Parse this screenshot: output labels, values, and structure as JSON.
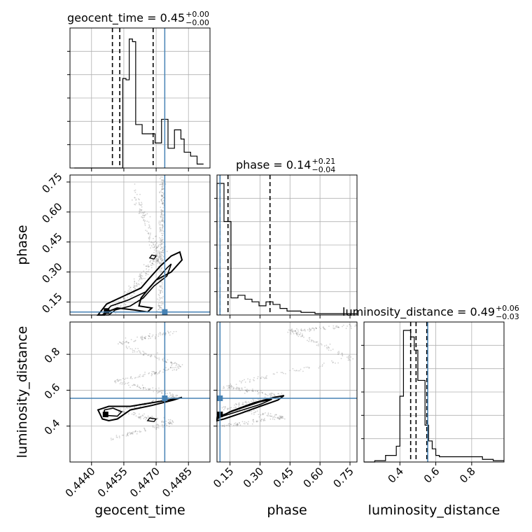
{
  "chart_data": {
    "type": "corner",
    "parameters": [
      "geocent_time",
      "phase",
      "luminosity_distance"
    ],
    "truths": {
      "geocent_time": 0.4474,
      "phase": 0.1,
      "luminosity_distance": 0.555
    },
    "colors": {
      "truth": "#4682b4",
      "hist": "#000000",
      "grid": "#b0b0b0",
      "scatter": "#808080"
    },
    "grid": true,
    "axes": {
      "geocent_time": {
        "range": [
          0.443,
          0.4495
        ],
        "ticks": [
          0.444,
          0.4455,
          0.447,
          0.4485
        ],
        "tick_labels": [
          "0.4440",
          "0.4455",
          "0.4470",
          "0.4485"
        ]
      },
      "phase": {
        "range": [
          0.085,
          0.785
        ],
        "ticks": [
          0.15,
          0.3,
          0.45,
          0.6,
          0.75
        ],
        "tick_labels": [
          "0.15",
          "0.30",
          "0.45",
          "0.60",
          "0.75"
        ]
      },
      "luminosity_distance": {
        "range": [
          0.2,
          0.98
        ],
        "ticks": [
          0.4,
          0.6,
          0.8
        ],
        "tick_labels": [
          "0.4",
          "0.6",
          "0.8"
        ]
      }
    },
    "titles": [
      {
        "param": "geocent_time",
        "label": "geocent_time = ",
        "value": "0.45",
        "plus": "+0.00",
        "minus": "−0.00"
      },
      {
        "param": "phase",
        "label": "phase = ",
        "value": "0.14",
        "plus": "+0.21",
        "minus": "−0.04"
      },
      {
        "param": "luminosity_distance",
        "label": "luminosity_distance = ",
        "value": "0.49",
        "plus": "+0.06",
        "minus": "−0.03"
      }
    ],
    "histograms": {
      "geocent_time": {
        "edges": [
          0.4432,
          0.44335,
          0.4435,
          0.44365,
          0.4438,
          0.44395,
          0.4441,
          0.44425,
          0.4444,
          0.44455,
          0.4447,
          0.44485,
          0.445,
          0.44515,
          0.4453,
          0.44545,
          0.4456,
          0.44575,
          0.4459,
          0.44605,
          0.4462,
          0.44635,
          0.4465,
          0.44665,
          0.4468,
          0.44695,
          0.4471,
          0.44725,
          0.4474,
          0.44755,
          0.4477,
          0.44785,
          0.448,
          0.44815,
          0.4483,
          0.44845,
          0.4486,
          0.44875,
          0.4489,
          0.44905,
          0.4492
        ],
        "counts": [
          0,
          0,
          0,
          0,
          0,
          0,
          0,
          0,
          0,
          0,
          0,
          0,
          0,
          0,
          0,
          0.68,
          0.67,
          0.98,
          0.96,
          0.33,
          0.33,
          0.26,
          0.26,
          0.26,
          0.26,
          0.19,
          0.19,
          0.37,
          0.37,
          0.15,
          0.15,
          0.29,
          0.29,
          0.22,
          0.12,
          0.12,
          0.09,
          0.09,
          0.03,
          0.03
        ],
        "quantiles": [
          0.44497,
          0.44531,
          0.44686
        ]
      },
      "phase": {
        "edges": [
          0.085,
          0.12,
          0.155,
          0.19,
          0.225,
          0.26,
          0.295,
          0.33,
          0.365,
          0.4,
          0.435,
          0.47,
          0.505,
          0.54,
          0.575,
          0.61,
          0.645,
          0.68,
          0.715,
          0.75,
          0.785
        ],
        "counts": [
          1.0,
          0.71,
          0.13,
          0.15,
          0.12,
          0.1,
          0.07,
          0.1,
          0.08,
          0.05,
          0.03,
          0.03,
          0.02,
          0.02,
          0.01,
          0.01,
          0.01,
          0.01,
          0.01,
          0.01
        ],
        "quantiles": [
          0.1,
          0.14,
          0.35
        ]
      },
      "luminosity_distance": {
        "edges": [
          0.2,
          0.26,
          0.32,
          0.38,
          0.4,
          0.42,
          0.44,
          0.46,
          0.48,
          0.5,
          0.52,
          0.54,
          0.56,
          0.58,
          0.6,
          0.62,
          0.68,
          0.74,
          0.8,
          0.86,
          0.92,
          0.98
        ],
        "counts": [
          0.0,
          0.01,
          0.05,
          0.12,
          0.5,
          1.0,
          1.0,
          0.95,
          0.85,
          0.62,
          0.62,
          0.28,
          0.16,
          0.1,
          0.05,
          0.04,
          0.04,
          0.04,
          0.04,
          0.02,
          0.01
        ],
        "quantiles": [
          0.46,
          0.49,
          0.55
        ]
      }
    }
  }
}
